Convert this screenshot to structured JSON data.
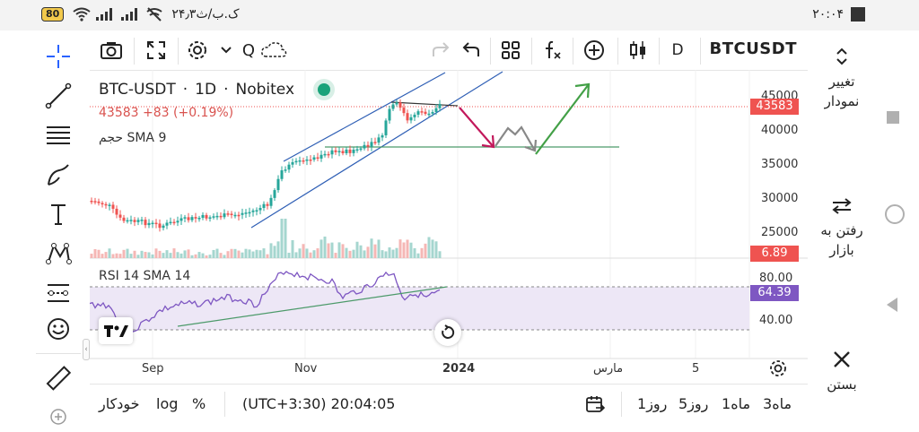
{
  "status_bar": {
    "battery": "80",
    "net_speed": "۲۴٫۳ک.ب/ث",
    "time": "۲۰:۰۴"
  },
  "toolbar": {
    "symbol": "BTCUSDT",
    "interval": "D",
    "search_label": "Q"
  },
  "legend": {
    "pair": "BTC-USDT",
    "interval": "1D",
    "exchange": "Nobitex",
    "price": "43583",
    "change": "+83 (+0.19%)",
    "volume_label": "حجم",
    "volume_sma": "SMA 9",
    "rsi": "RSI 14 SMA 14"
  },
  "price_axis": {
    "labels": [
      "45000",
      "40000",
      "35000",
      "30000",
      "25000"
    ],
    "current_price": "43583",
    "volume_value": "6.89"
  },
  "rsi_axis": {
    "labels": [
      "80.00",
      "40.00"
    ],
    "current": "64.39"
  },
  "time_axis": {
    "labels": [
      "Sep",
      "Nov",
      "2024",
      "مارس",
      "5"
    ]
  },
  "right_panel": {
    "change_chart": "تغییر نمودار",
    "go_market": "رفتن به بازار",
    "close": "بستن"
  },
  "bottom_bar": {
    "ranges": [
      "3ماه",
      "1ماه",
      "5روز",
      "1روز"
    ],
    "timezone": "(UTC+3:30) 20:04:05",
    "percent": "%",
    "log": "log",
    "auto": "خودکار"
  },
  "colors": {
    "up": "#26a69a",
    "down": "#ef5350",
    "channel": "#2f5fb5",
    "rsi_line": "#7e57c2",
    "rsi_band": "#ede7f6",
    "price_badge": "#ef5350",
    "rsi_badge": "#7e57c2",
    "arrow_red": "#c2185b",
    "arrow_green": "#43a047",
    "arrow_gray": "#888888"
  }
}
